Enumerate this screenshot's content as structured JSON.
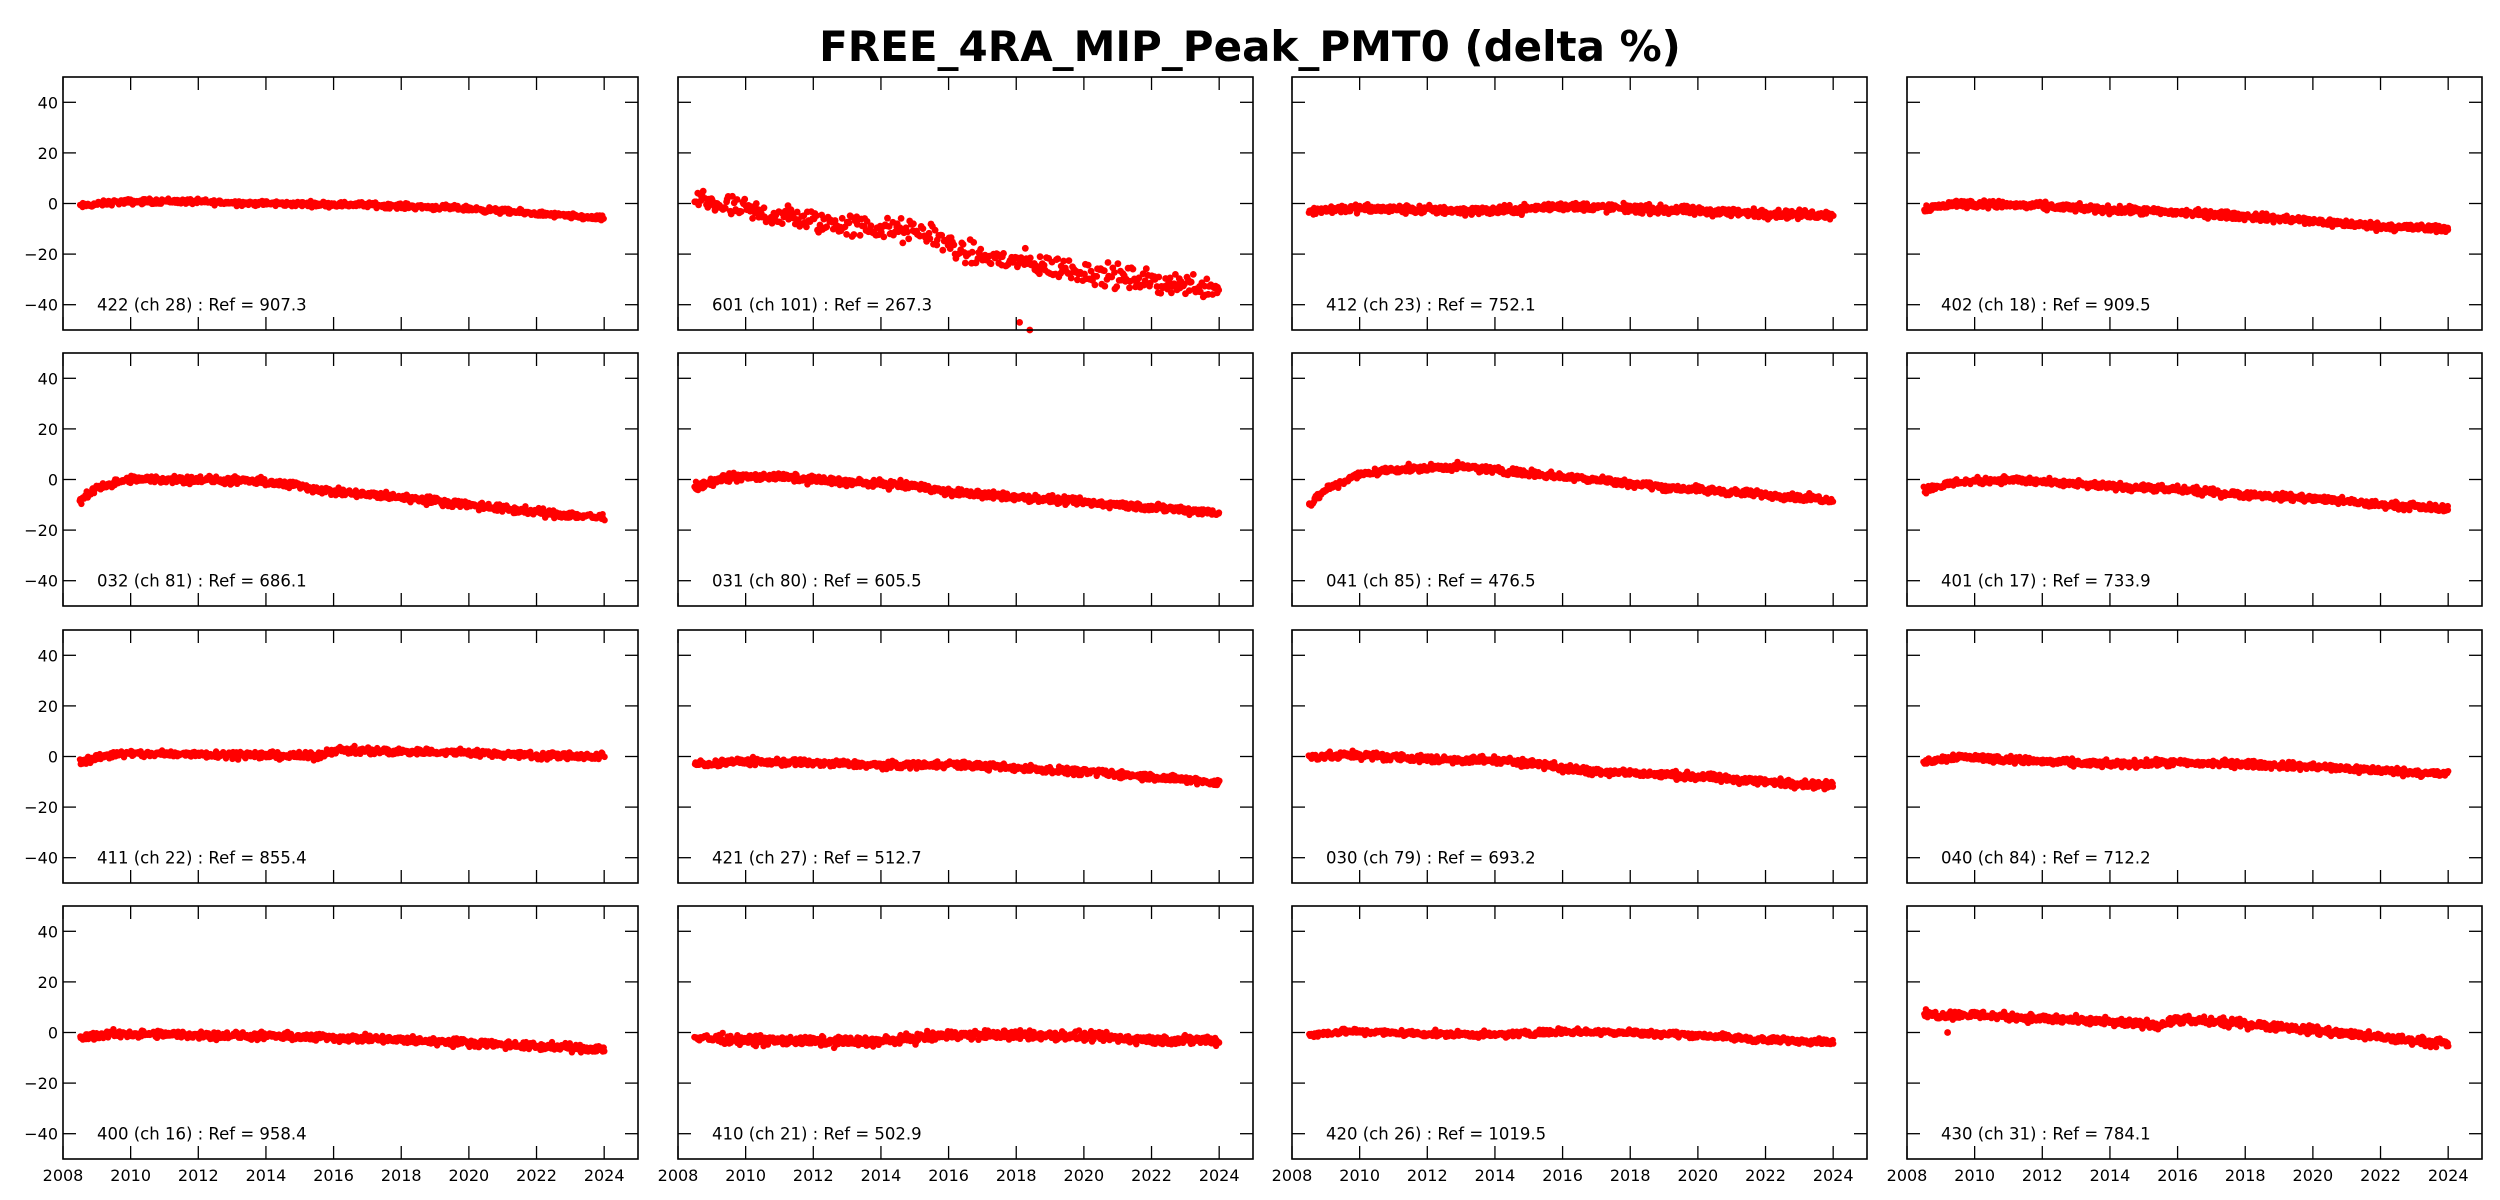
{
  "chart_data": {
    "type": "scatter",
    "title": "FREE_4RA_MIP_Peak_PMT0 (delta %)",
    "layout": "4x4 grid of small multiples",
    "xlabel": "",
    "ylabel": "",
    "xlim": [
      2008,
      2025
    ],
    "ylim": [
      -50,
      50
    ],
    "xticks": [
      2008,
      2010,
      2012,
      2014,
      2016,
      2018,
      2020,
      2022,
      2024
    ],
    "yticks": [
      -40,
      -20,
      0,
      20,
      40
    ],
    "x_tick_labels_shown_on": "bottom row only",
    "y_tick_labels_shown_on": "left column only",
    "marker_color": "#ff0000",
    "grid": false,
    "panels": [
      {
        "label": "422 (ch 28) : Ref = 907.3",
        "noise": 0.9,
        "trend": [
          [
            2008.5,
            -1
          ],
          [
            2009.5,
            0.5
          ],
          [
            2011,
            1
          ],
          [
            2014,
            0
          ],
          [
            2017,
            -0.5
          ],
          [
            2020,
            -2
          ],
          [
            2022,
            -4
          ],
          [
            2024,
            -6
          ]
        ]
      },
      {
        "label": "601 (ch 101) : Ref = 267.3",
        "noise": 4.0,
        "sparse": true,
        "trend": [
          [
            2008.5,
            2
          ],
          [
            2010,
            -3
          ],
          [
            2012,
            -7
          ],
          [
            2014,
            -10
          ],
          [
            2015.5,
            -12
          ],
          [
            2016.5,
            -20
          ],
          [
            2018,
            -23
          ],
          [
            2020,
            -27
          ],
          [
            2022,
            -31
          ],
          [
            2024,
            -33
          ]
        ],
        "outliers": [
          [
            2018.1,
            -47
          ],
          [
            2018.4,
            -50
          ]
        ]
      },
      {
        "label": "412 (ch 23) : Ref = 752.1",
        "noise": 1.5,
        "trend": [
          [
            2008.5,
            -3
          ],
          [
            2009.5,
            -2
          ],
          [
            2012,
            -2.5
          ],
          [
            2014,
            -3
          ],
          [
            2016,
            -1
          ],
          [
            2018,
            -2
          ],
          [
            2020,
            -3
          ],
          [
            2022,
            -4
          ],
          [
            2024,
            -4.5
          ]
        ]
      },
      {
        "label": "402 (ch 18) : Ref = 909.5",
        "noise": 1.3,
        "trend": [
          [
            2008.5,
            -2
          ],
          [
            2009.5,
            0
          ],
          [
            2012,
            -1
          ],
          [
            2014,
            -2.5
          ],
          [
            2016,
            -3.5
          ],
          [
            2018,
            -5
          ],
          [
            2020,
            -7
          ],
          [
            2022,
            -9
          ],
          [
            2024,
            -10
          ]
        ]
      },
      {
        "label": "032 (ch 81) : Ref = 686.1",
        "noise": 1.3,
        "trend": [
          [
            2008.5,
            -9
          ],
          [
            2009,
            -3
          ],
          [
            2010,
            0
          ],
          [
            2012,
            0
          ],
          [
            2014,
            -1
          ],
          [
            2015,
            -2.5
          ],
          [
            2016,
            -5
          ],
          [
            2018,
            -7
          ],
          [
            2020,
            -10
          ],
          [
            2022,
            -13
          ],
          [
            2024,
            -15
          ]
        ]
      },
      {
        "label": "031 (ch 80) : Ref = 605.5",
        "noise": 1.3,
        "trend": [
          [
            2008.5,
            -3
          ],
          [
            2009.5,
            1
          ],
          [
            2011,
            1
          ],
          [
            2013,
            -1
          ],
          [
            2015,
            -2.5
          ],
          [
            2016,
            -5
          ],
          [
            2018,
            -7
          ],
          [
            2020,
            -9
          ],
          [
            2022,
            -11
          ],
          [
            2024,
            -13
          ]
        ]
      },
      {
        "label": "041 (ch 85) : Ref = 476.5",
        "noise": 1.2,
        "trend": [
          [
            2008.5,
            -10
          ],
          [
            2009,
            -4
          ],
          [
            2010,
            2
          ],
          [
            2011,
            4
          ],
          [
            2013,
            5
          ],
          [
            2015,
            2.5
          ],
          [
            2017,
            0
          ],
          [
            2019,
            -3
          ],
          [
            2021,
            -5
          ],
          [
            2024,
            -8
          ]
        ]
      },
      {
        "label": "401 (ch 17) : Ref = 733.9",
        "noise": 1.2,
        "trend": [
          [
            2008.5,
            -4
          ],
          [
            2009.5,
            -1
          ],
          [
            2011,
            0
          ],
          [
            2013,
            -2
          ],
          [
            2016,
            -4
          ],
          [
            2018,
            -6
          ],
          [
            2020,
            -7.5
          ],
          [
            2022,
            -10
          ],
          [
            2024,
            -11.5
          ]
        ]
      },
      {
        "label": "411 (ch 22) : Ref = 855.4",
        "noise": 1.2,
        "trend": [
          [
            2008.5,
            -2
          ],
          [
            2009.5,
            1
          ],
          [
            2012,
            1
          ],
          [
            2014,
            0.5
          ],
          [
            2015.5,
            0
          ],
          [
            2016,
            2.5
          ],
          [
            2018,
            2
          ],
          [
            2020,
            1.5
          ],
          [
            2022,
            0.5
          ],
          [
            2024,
            0
          ]
        ]
      },
      {
        "label": "421 (ch 27) : Ref = 512.7",
        "noise": 1.2,
        "trend": [
          [
            2008.5,
            -3
          ],
          [
            2010,
            -2
          ],
          [
            2012,
            -2.5
          ],
          [
            2014,
            -3.5
          ],
          [
            2016,
            -3
          ],
          [
            2018,
            -4.5
          ],
          [
            2020,
            -6
          ],
          [
            2022,
            -8
          ],
          [
            2024,
            -10.5
          ]
        ]
      },
      {
        "label": "030 (ch 79) : Ref = 693.2",
        "noise": 1.3,
        "trend": [
          [
            2008.5,
            0
          ],
          [
            2010,
            0.5
          ],
          [
            2012,
            -1
          ],
          [
            2014,
            -1.5
          ],
          [
            2015.5,
            -3
          ],
          [
            2016,
            -5
          ],
          [
            2018,
            -6.5
          ],
          [
            2020,
            -8
          ],
          [
            2022,
            -10
          ],
          [
            2024,
            -11.5
          ]
        ]
      },
      {
        "label": "040 (ch 84) : Ref = 712.2",
        "noise": 1.2,
        "trend": [
          [
            2008.5,
            -2
          ],
          [
            2009.5,
            0
          ],
          [
            2012,
            -2
          ],
          [
            2014,
            -3
          ],
          [
            2016,
            -2.5
          ],
          [
            2018,
            -3
          ],
          [
            2020,
            -4
          ],
          [
            2022,
            -5.5
          ],
          [
            2024,
            -7
          ]
        ]
      },
      {
        "label": "400 (ch 16) : Ref = 958.4",
        "noise": 1.3,
        "trend": [
          [
            2008.5,
            -2
          ],
          [
            2009.5,
            -0.5
          ],
          [
            2012,
            -1
          ],
          [
            2014,
            -1.5
          ],
          [
            2016,
            -2
          ],
          [
            2018,
            -3
          ],
          [
            2020,
            -4
          ],
          [
            2022,
            -5.5
          ],
          [
            2024,
            -6.5
          ]
        ]
      },
      {
        "label": "410 (ch 21) : Ref = 502.9",
        "noise": 1.6,
        "trend": [
          [
            2008.5,
            -2
          ],
          [
            2010,
            -3
          ],
          [
            2012,
            -3.5
          ],
          [
            2014,
            -3.5
          ],
          [
            2016,
            -1
          ],
          [
            2018,
            -1
          ],
          [
            2020,
            -1.5
          ],
          [
            2022,
            -3
          ],
          [
            2024,
            -3
          ]
        ]
      },
      {
        "label": "420 (ch 26) : Ref = 1019.5",
        "noise": 1.0,
        "trend": [
          [
            2008.5,
            -1
          ],
          [
            2009.5,
            0.5
          ],
          [
            2012,
            -0.5
          ],
          [
            2014,
            -1
          ],
          [
            2016,
            0.5
          ],
          [
            2018,
            0
          ],
          [
            2020,
            -1
          ],
          [
            2022,
            -3
          ],
          [
            2024,
            -3.5
          ]
        ]
      },
      {
        "label": "430 (ch 31) : Ref = 784.1",
        "noise": 1.4,
        "trend": [
          [
            2008.5,
            7
          ],
          [
            2010,
            7
          ],
          [
            2012,
            5.5
          ],
          [
            2014,
            4
          ],
          [
            2015.5,
            3
          ],
          [
            2016,
            5
          ],
          [
            2018,
            3.5
          ],
          [
            2020,
            1
          ],
          [
            2022,
            -2
          ],
          [
            2024,
            -4.5
          ]
        ],
        "outliers": [
          [
            2009.2,
            0
          ]
        ]
      }
    ]
  }
}
